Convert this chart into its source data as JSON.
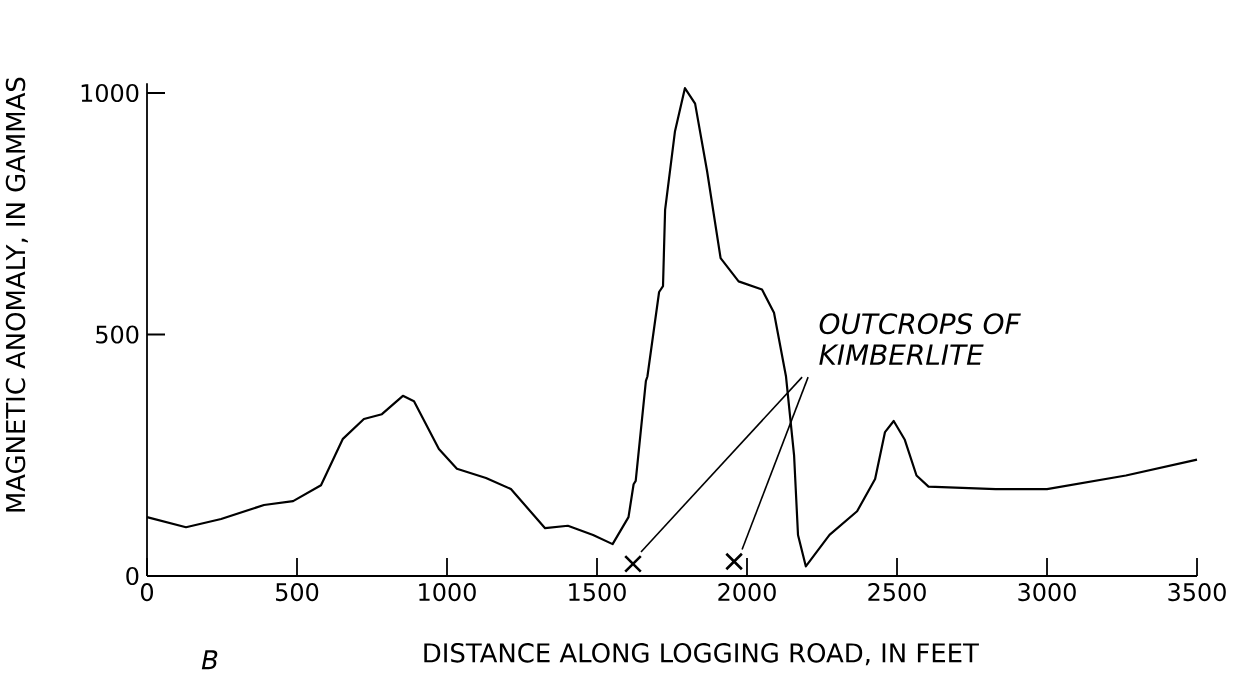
{
  "chart_data": {
    "type": "line",
    "xlabel": "DISTANCE ALONG LOGGING ROAD, IN FEET",
    "ylabel": "MAGNETIC ANOMALY, IN GAMMAS",
    "xlim": [
      0,
      3500
    ],
    "ylim": [
      0,
      1020
    ],
    "xticks": [
      0,
      500,
      1000,
      1500,
      2000,
      2500,
      3000,
      3500
    ],
    "yticks": [
      0,
      500,
      1000
    ],
    "grid": false,
    "series": [
      {
        "color": "#000000",
        "x": [
          0,
          130,
          247,
          390,
          487,
          580,
          653,
          723,
          783,
          853,
          890,
          973,
          1033,
          1130,
          1213,
          1327,
          1403,
          1487,
          1552,
          1605,
          1622,
          1629,
          1663,
          1668,
          1707,
          1720,
          1727,
          1760,
          1793,
          1827,
          1867,
          1912,
          1972,
          2050,
          2090,
          2130,
          2157,
          2170,
          2196,
          2275,
          2367,
          2427,
          2460,
          2489,
          2526,
          2565,
          2605,
          2829,
          3000,
          3263,
          3500
        ],
        "values": [
          122,
          101,
          118,
          147,
          155,
          188,
          284,
          325,
          335,
          373,
          362,
          263,
          222,
          203,
          180,
          99,
          104,
          85,
          66,
          122,
          190,
          197,
          404,
          413,
          588,
          600,
          758,
          921,
          1010,
          978,
          838,
          658,
          610,
          593,
          545,
          413,
          249,
          85,
          20,
          85,
          134,
          201,
          298,
          321,
          282,
          208,
          185,
          180,
          180,
          208,
          241
        ]
      },
      {
        "type": "scatter",
        "marker": "cross",
        "color": "#000000",
        "x": [
          1620,
          1957
        ],
        "values": [
          25,
          30
        ]
      }
    ],
    "annotations": [
      "OUTCROPS OF KIMBERLITE",
      "B"
    ]
  }
}
